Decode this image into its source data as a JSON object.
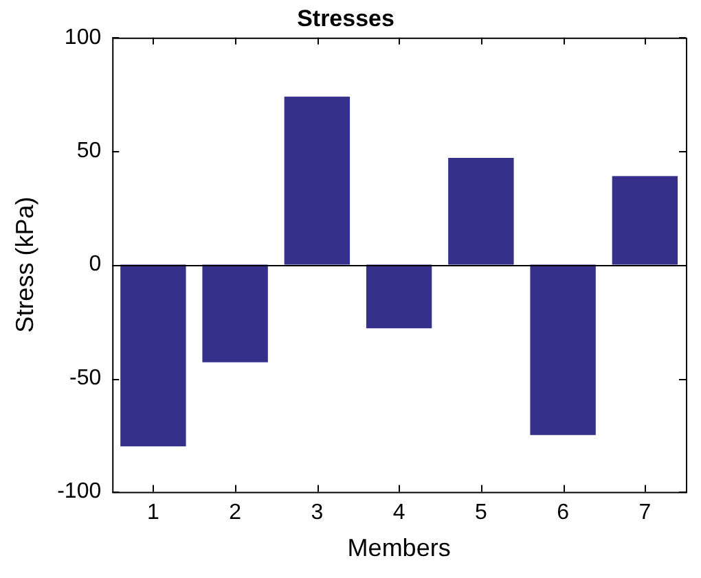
{
  "chart_data": {
    "type": "bar",
    "title": "Stresses",
    "xlabel": "Members",
    "ylabel": "Stress (kPa)",
    "categories": [
      "1",
      "2",
      "3",
      "4",
      "5",
      "6",
      "7"
    ],
    "values": [
      -80,
      -43,
      74,
      -28,
      47,
      -75,
      39
    ],
    "color": "#35308a",
    "ylim": [
      -100,
      100
    ],
    "yticks": [
      -100,
      -50,
      0,
      50,
      100
    ],
    "grid": false,
    "legend": false,
    "ref_lines": [
      {
        "axis": "y",
        "value": 0,
        "color": "#000000"
      }
    ]
  }
}
